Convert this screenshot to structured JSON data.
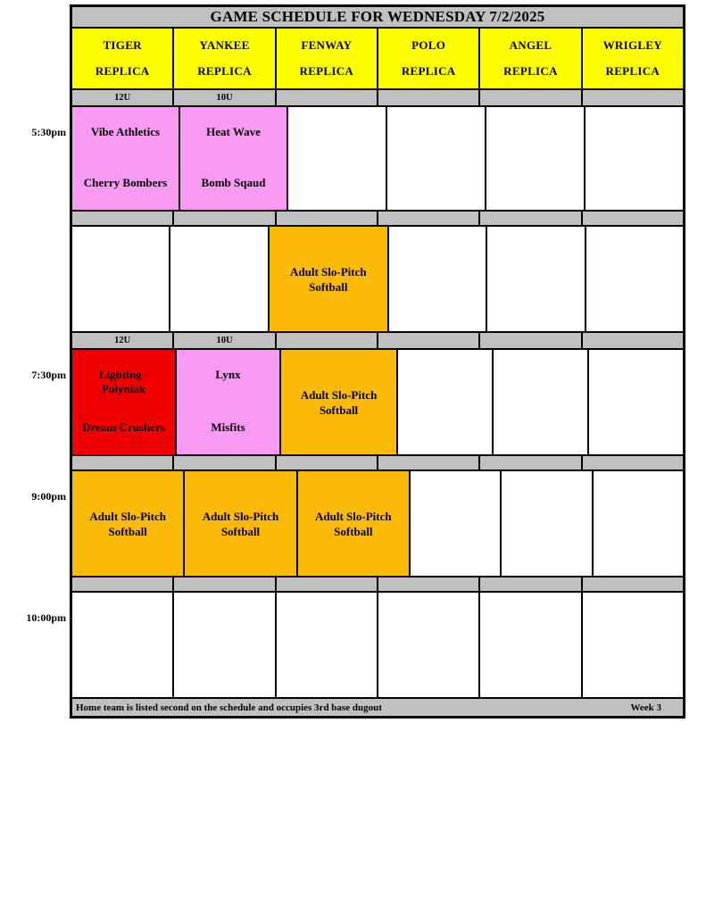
{
  "title": "GAME SCHEDULE FOR WEDNESDAY 7/2/2025",
  "colors": {
    "bar_gray": "#C0C0C0",
    "header_yellow": "#FFFF00",
    "match_pink": "#F79AF2",
    "match_red": "#F20000",
    "event_orange": "#FBB908",
    "border_black": "#000000",
    "text_black": "#000000",
    "empty_white": "#FFFFFF"
  },
  "fields": [
    {
      "line1": "TIGER",
      "line2": "REPLICA"
    },
    {
      "line1": "YANKEE",
      "line2": "REPLICA"
    },
    {
      "line1": "FENWAY",
      "line2": "REPLICA"
    },
    {
      "line1": "POLO",
      "line2": "REPLICA"
    },
    {
      "line1": "ANGEL",
      "line2": "REPLICA"
    },
    {
      "line1": "WRIGLEY",
      "line2": "REPLICA"
    }
  ],
  "rows": [
    {
      "kind": "age-header",
      "labels": [
        "12U",
        "10U",
        "",
        "",
        "",
        ""
      ]
    },
    {
      "kind": "games",
      "time": "5:30pm",
      "cells": [
        {
          "type": "match",
          "top": "Vibe Athletics",
          "bottom": "Cherry Bombers"
        },
        {
          "type": "match",
          "top": "Heat Wave",
          "bottom": "Bomb Sqaud"
        },
        {
          "type": "empty"
        },
        {
          "type": "empty"
        },
        {
          "type": "empty"
        },
        {
          "type": "empty"
        }
      ]
    },
    {
      "kind": "separator"
    },
    {
      "kind": "games",
      "time": "",
      "cells": [
        {
          "type": "empty"
        },
        {
          "type": "empty"
        },
        {
          "type": "event",
          "text": "Adult Slo-Pitch Softball"
        },
        {
          "type": "empty"
        },
        {
          "type": "empty"
        },
        {
          "type": "empty"
        }
      ]
    },
    {
      "kind": "age-header",
      "labels": [
        "12U",
        "10U",
        "",
        "",
        "",
        ""
      ]
    },
    {
      "kind": "games",
      "time": "7:30pm",
      "cells": [
        {
          "type": "match",
          "top": "Lighting - Polyniak",
          "bottom": "Dream Crushers"
        },
        {
          "type": "match",
          "top": "Lynx",
          "bottom": "Misfits"
        },
        {
          "type": "event",
          "text": "Adult Slo-Pitch Softball"
        },
        {
          "type": "empty"
        },
        {
          "type": "empty"
        },
        {
          "type": "empty"
        }
      ]
    },
    {
      "kind": "separator"
    },
    {
      "kind": "games",
      "time": "9:00pm",
      "cells": [
        {
          "type": "event",
          "text": "Adult Slo-Pitch Softball"
        },
        {
          "type": "event",
          "text": "Adult Slo-Pitch Softball"
        },
        {
          "type": "event",
          "text": "Adult Slo-Pitch Softball"
        },
        {
          "type": "empty"
        },
        {
          "type": "empty"
        },
        {
          "type": "empty"
        }
      ]
    },
    {
      "kind": "separator"
    },
    {
      "kind": "games",
      "time": "10:00pm",
      "cells": [
        {
          "type": "empty"
        },
        {
          "type": "empty"
        },
        {
          "type": "empty"
        },
        {
          "type": "empty"
        },
        {
          "type": "empty"
        },
        {
          "type": "empty"
        }
      ]
    }
  ],
  "footer": {
    "note": "Home team is listed second on the schedule and occupies 3rd base dugout",
    "week": "Week 3"
  }
}
